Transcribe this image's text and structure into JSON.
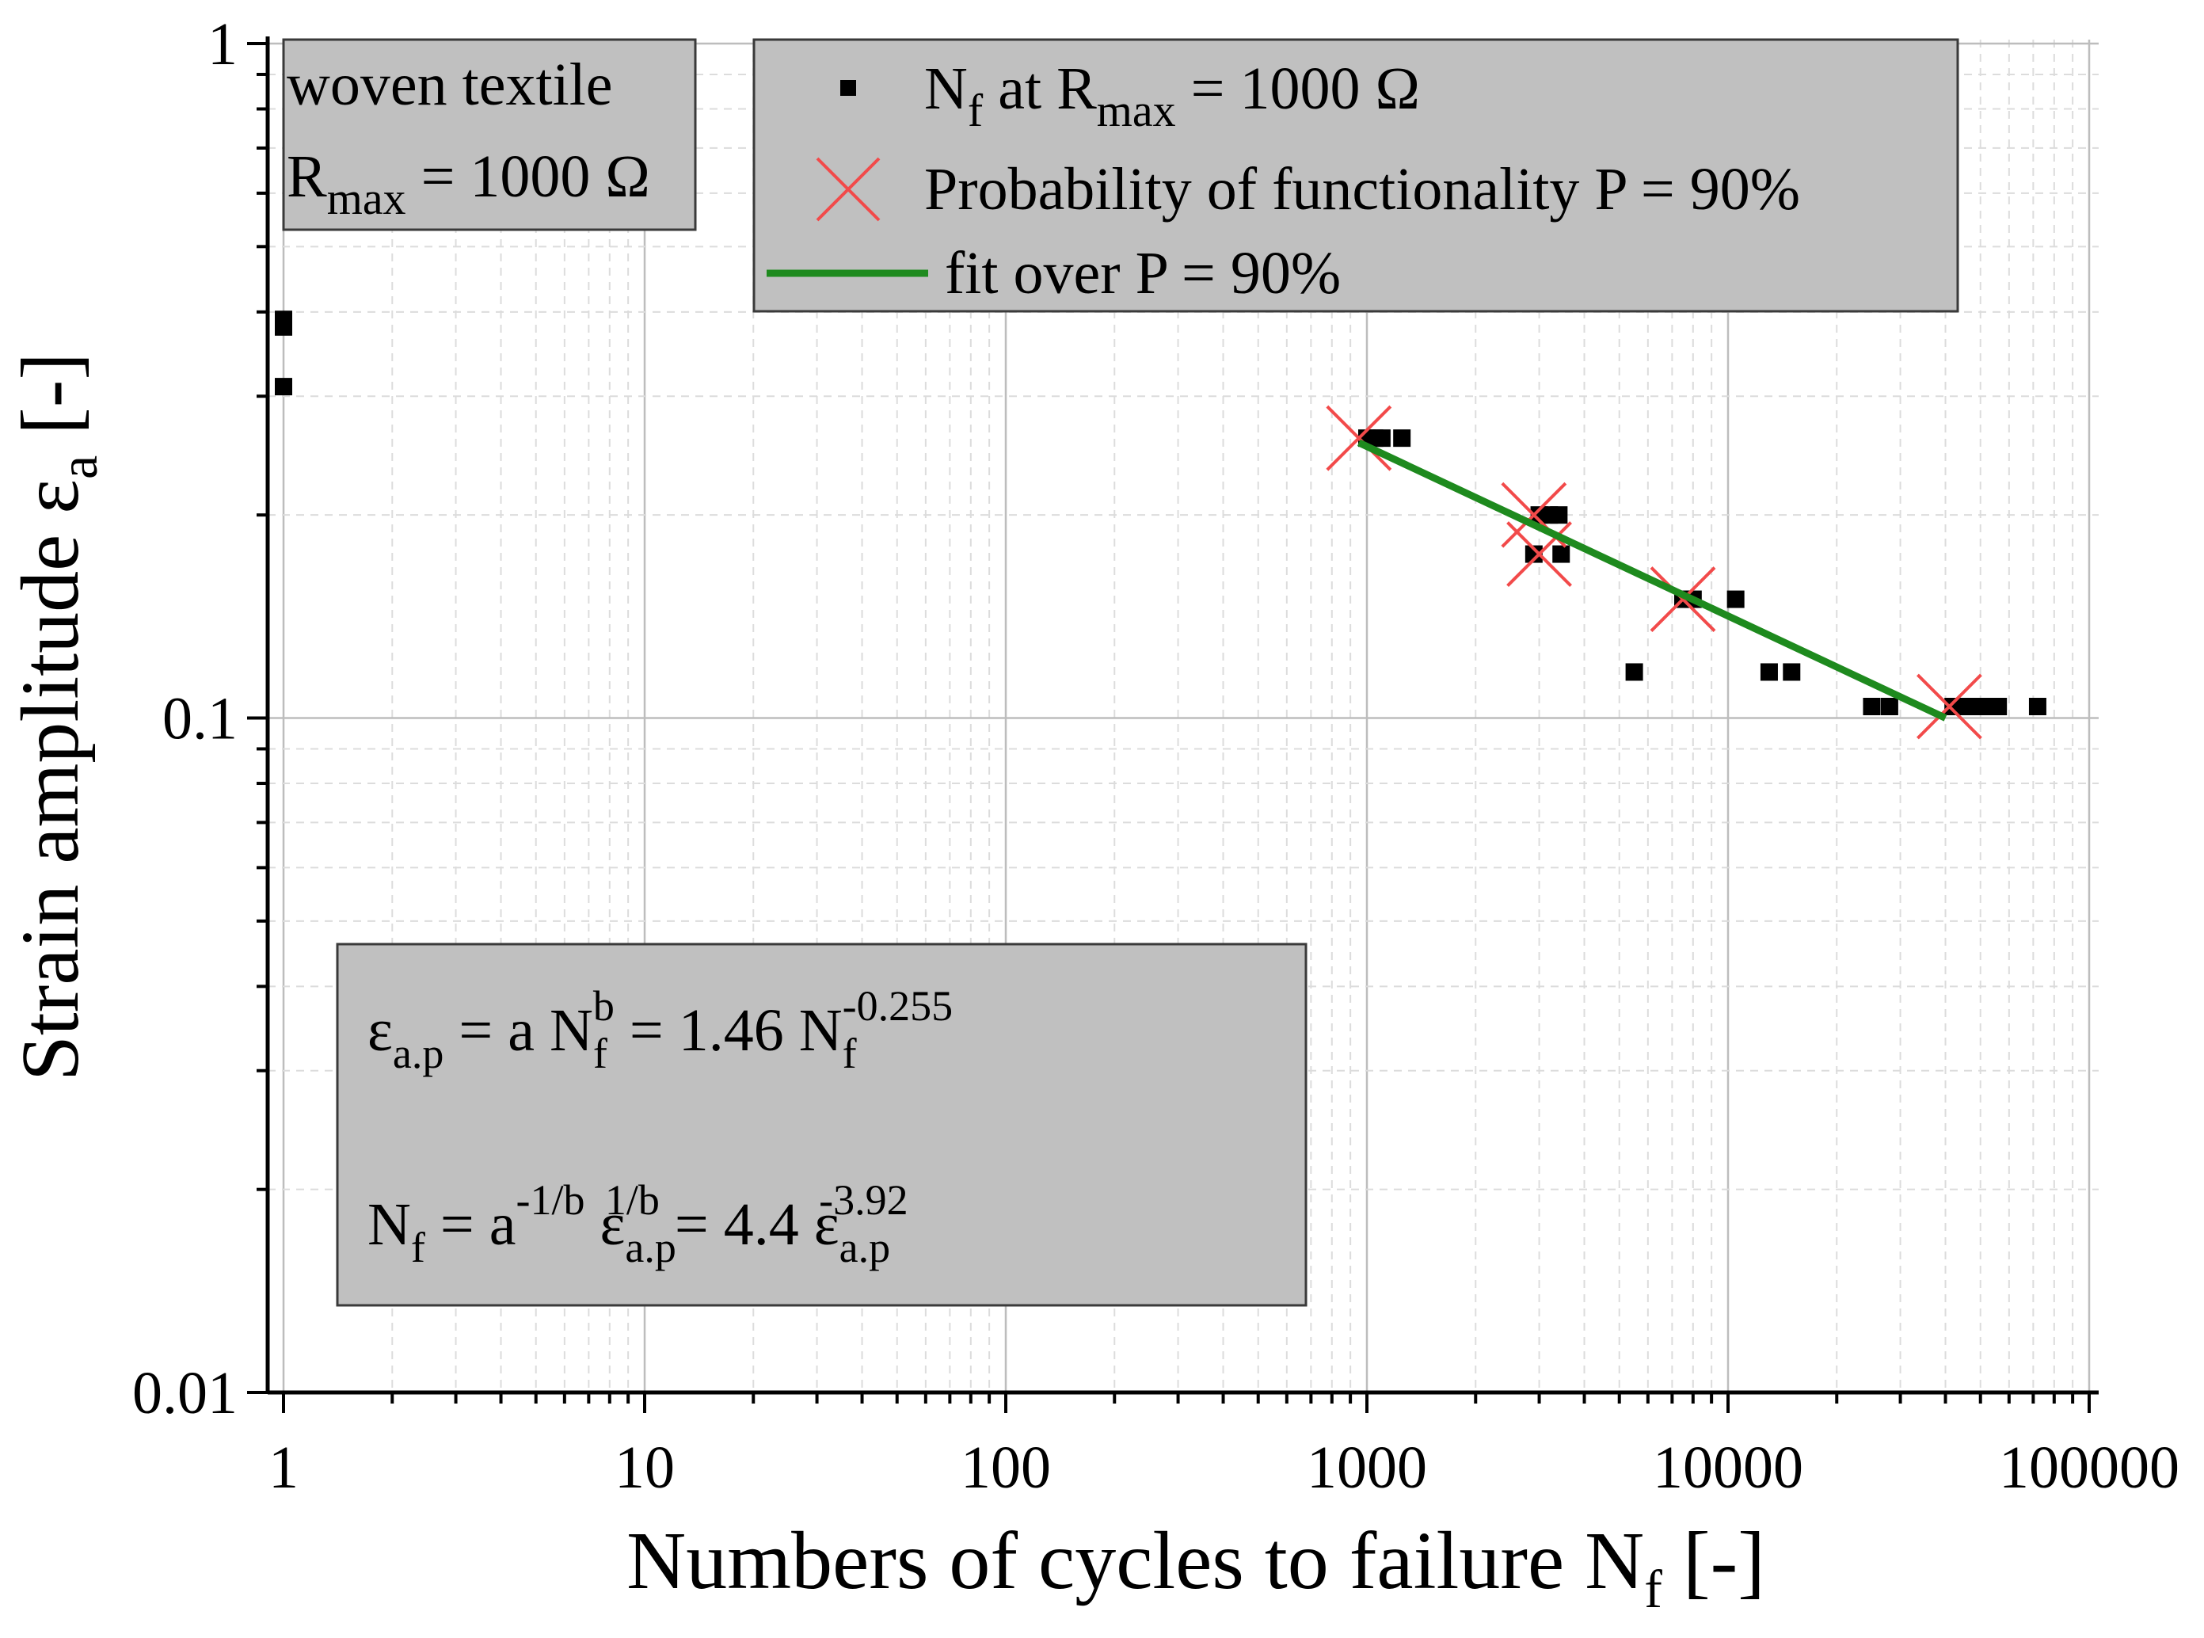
{
  "chart_data": {
    "type": "scatter",
    "xscale": "log",
    "yscale": "log",
    "xlabel": "Numbers of cycles to failure N",
    "xlabel_sub": "f",
    "xlabel_suffix": " [-]",
    "ylabel": "Strain amplitude ε",
    "ylabel_sub": "a",
    "ylabel_suffix": " [-]",
    "xlim": [
      0.9,
      120000
    ],
    "ylim": [
      0.01,
      1
    ],
    "x_ticks": [
      1,
      10,
      100,
      1000,
      10000,
      100000
    ],
    "x_tick_labels": [
      "1",
      "10",
      "100",
      "1000",
      "10000",
      "100000"
    ],
    "y_ticks": [
      0.01,
      0.1,
      1
    ],
    "y_tick_labels": [
      "0.01",
      "0.1",
      "1"
    ],
    "grid": true,
    "legend_position": "top",
    "series": [
      {
        "name": "N at R = 1000 Ω",
        "marker": "square",
        "color": "#000000",
        "points": [
          [
            1,
            0.39
          ],
          [
            1,
            0.38
          ],
          [
            1,
            0.31
          ],
          [
            1000,
            0.26
          ],
          [
            1050,
            0.26
          ],
          [
            1100,
            0.26
          ],
          [
            1250,
            0.26
          ],
          [
            2900,
            0.175
          ],
          [
            3000,
            0.2
          ],
          [
            3200,
            0.2
          ],
          [
            3400,
            0.2
          ],
          [
            3450,
            0.175
          ],
          [
            7500,
            0.15
          ],
          [
            8000,
            0.15
          ],
          [
            10500,
            0.15
          ],
          [
            5500,
            0.117
          ],
          [
            13000,
            0.117
          ],
          [
            15000,
            0.117
          ],
          [
            25000,
            0.104
          ],
          [
            28000,
            0.104
          ],
          [
            42000,
            0.104
          ],
          [
            45000,
            0.104
          ],
          [
            48000,
            0.104
          ],
          [
            52000,
            0.104
          ],
          [
            56000,
            0.104
          ],
          [
            72000,
            0.104
          ]
        ]
      },
      {
        "name": "Probability of functionality P = 90%",
        "marker": "x",
        "color": "#f24a4a",
        "points": [
          [
            950,
            0.26
          ],
          [
            2900,
            0.2
          ],
          [
            3000,
            0.175
          ],
          [
            7500,
            0.15
          ],
          [
            41000,
            0.104
          ]
        ]
      },
      {
        "name": "fit over P = 90%",
        "type": "line",
        "color": "#1e8a1e",
        "points": [
          [
            950,
            0.256
          ],
          [
            40000,
            0.1
          ]
        ]
      }
    ]
  },
  "legend": {
    "entries": [
      {
        "main": "N",
        "sub": "f",
        "main2": " at R",
        "sub2": "max",
        "rest": " = 1000 Ω"
      },
      {
        "text": "Probability of functionality P = 90%"
      },
      {
        "text": "fit over P = 90%"
      }
    ]
  },
  "textile_box": {
    "line1": "woven textile",
    "line2_main": "R",
    "line2_sub": "max",
    "line2_rest": " = 1000 Ω"
  },
  "equation_box": {
    "eq1": {
      "lhs": "ε",
      "lhs_sub": "a.p",
      "mid1": " = a N",
      "sub1": "f",
      "sup1": "b",
      "mid2": " = 1.46 N",
      "sub2": "f",
      "sup2": "-0.255"
    },
    "eq2": {
      "lhs": "N",
      "lhs_sub": "f",
      "mid1": " = a",
      "sup1": "-1/b",
      "mid2": " ε",
      "sub2": "a.p",
      "sup2": "1/b",
      "mid3": " = 4.4 ε",
      "sub3": "a.p",
      "sup3": "-3.92"
    }
  }
}
